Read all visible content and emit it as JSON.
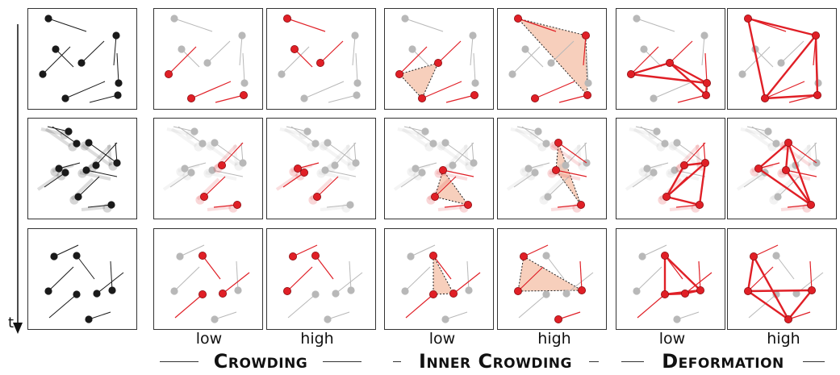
{
  "axis": {
    "time_label": "t"
  },
  "levels": {
    "low": "low",
    "high": "high"
  },
  "groups": {
    "crowding": "Crowding",
    "inner_crowding": "Inner Crowding",
    "deformation": "Deformation"
  },
  "colors": {
    "ink": "#1a1a1a",
    "faded": "#b8b8b8",
    "highlight": "#e01f26",
    "fill": "#f6c7b0"
  }
}
